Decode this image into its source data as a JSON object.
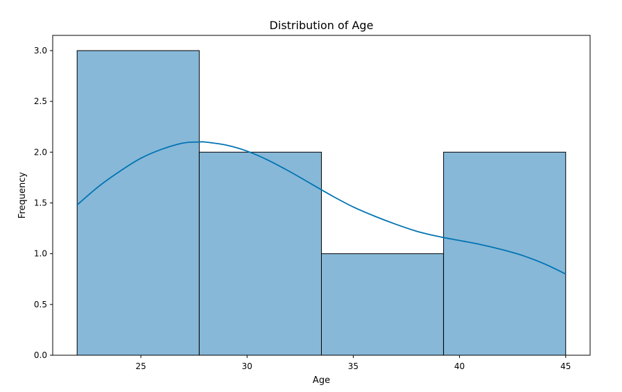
{
  "chart_data": {
    "type": "bar",
    "title": "Distribution of Age",
    "xlabel": "Age",
    "ylabel": "Frequency",
    "bin_edges": [
      22,
      27.75,
      33.5,
      39.25,
      45
    ],
    "values": [
      3,
      2,
      1,
      2
    ],
    "xlim": [
      20.85,
      46.15
    ],
    "ylim": [
      0,
      3.15
    ],
    "xticks": [
      25,
      30,
      35,
      40,
      45
    ],
    "yticks": [
      0.0,
      0.5,
      1.0,
      1.5,
      2.0,
      2.5,
      3.0
    ],
    "ytick_labels": [
      "0.0",
      "0.5",
      "1.0",
      "1.5",
      "2.0",
      "2.5",
      "3.0"
    ],
    "kde": {
      "x": [
        22,
        23,
        24,
        25,
        26,
        27,
        27.75,
        28,
        29,
        30,
        31,
        32,
        33,
        34,
        35,
        36,
        37,
        38,
        39,
        40,
        41,
        42,
        43,
        44,
        45
      ],
      "y": [
        1.48,
        1.66,
        1.81,
        1.94,
        2.03,
        2.09,
        2.1,
        2.1,
        2.07,
        2.01,
        1.92,
        1.81,
        1.69,
        1.57,
        1.46,
        1.37,
        1.29,
        1.22,
        1.17,
        1.13,
        1.09,
        1.04,
        0.98,
        0.9,
        0.8
      ]
    },
    "colors": {
      "bar_fill": "#87b8d8",
      "bar_edge": "#000000",
      "kde_line": "#0173b2"
    },
    "grid": false,
    "legend": "none"
  }
}
